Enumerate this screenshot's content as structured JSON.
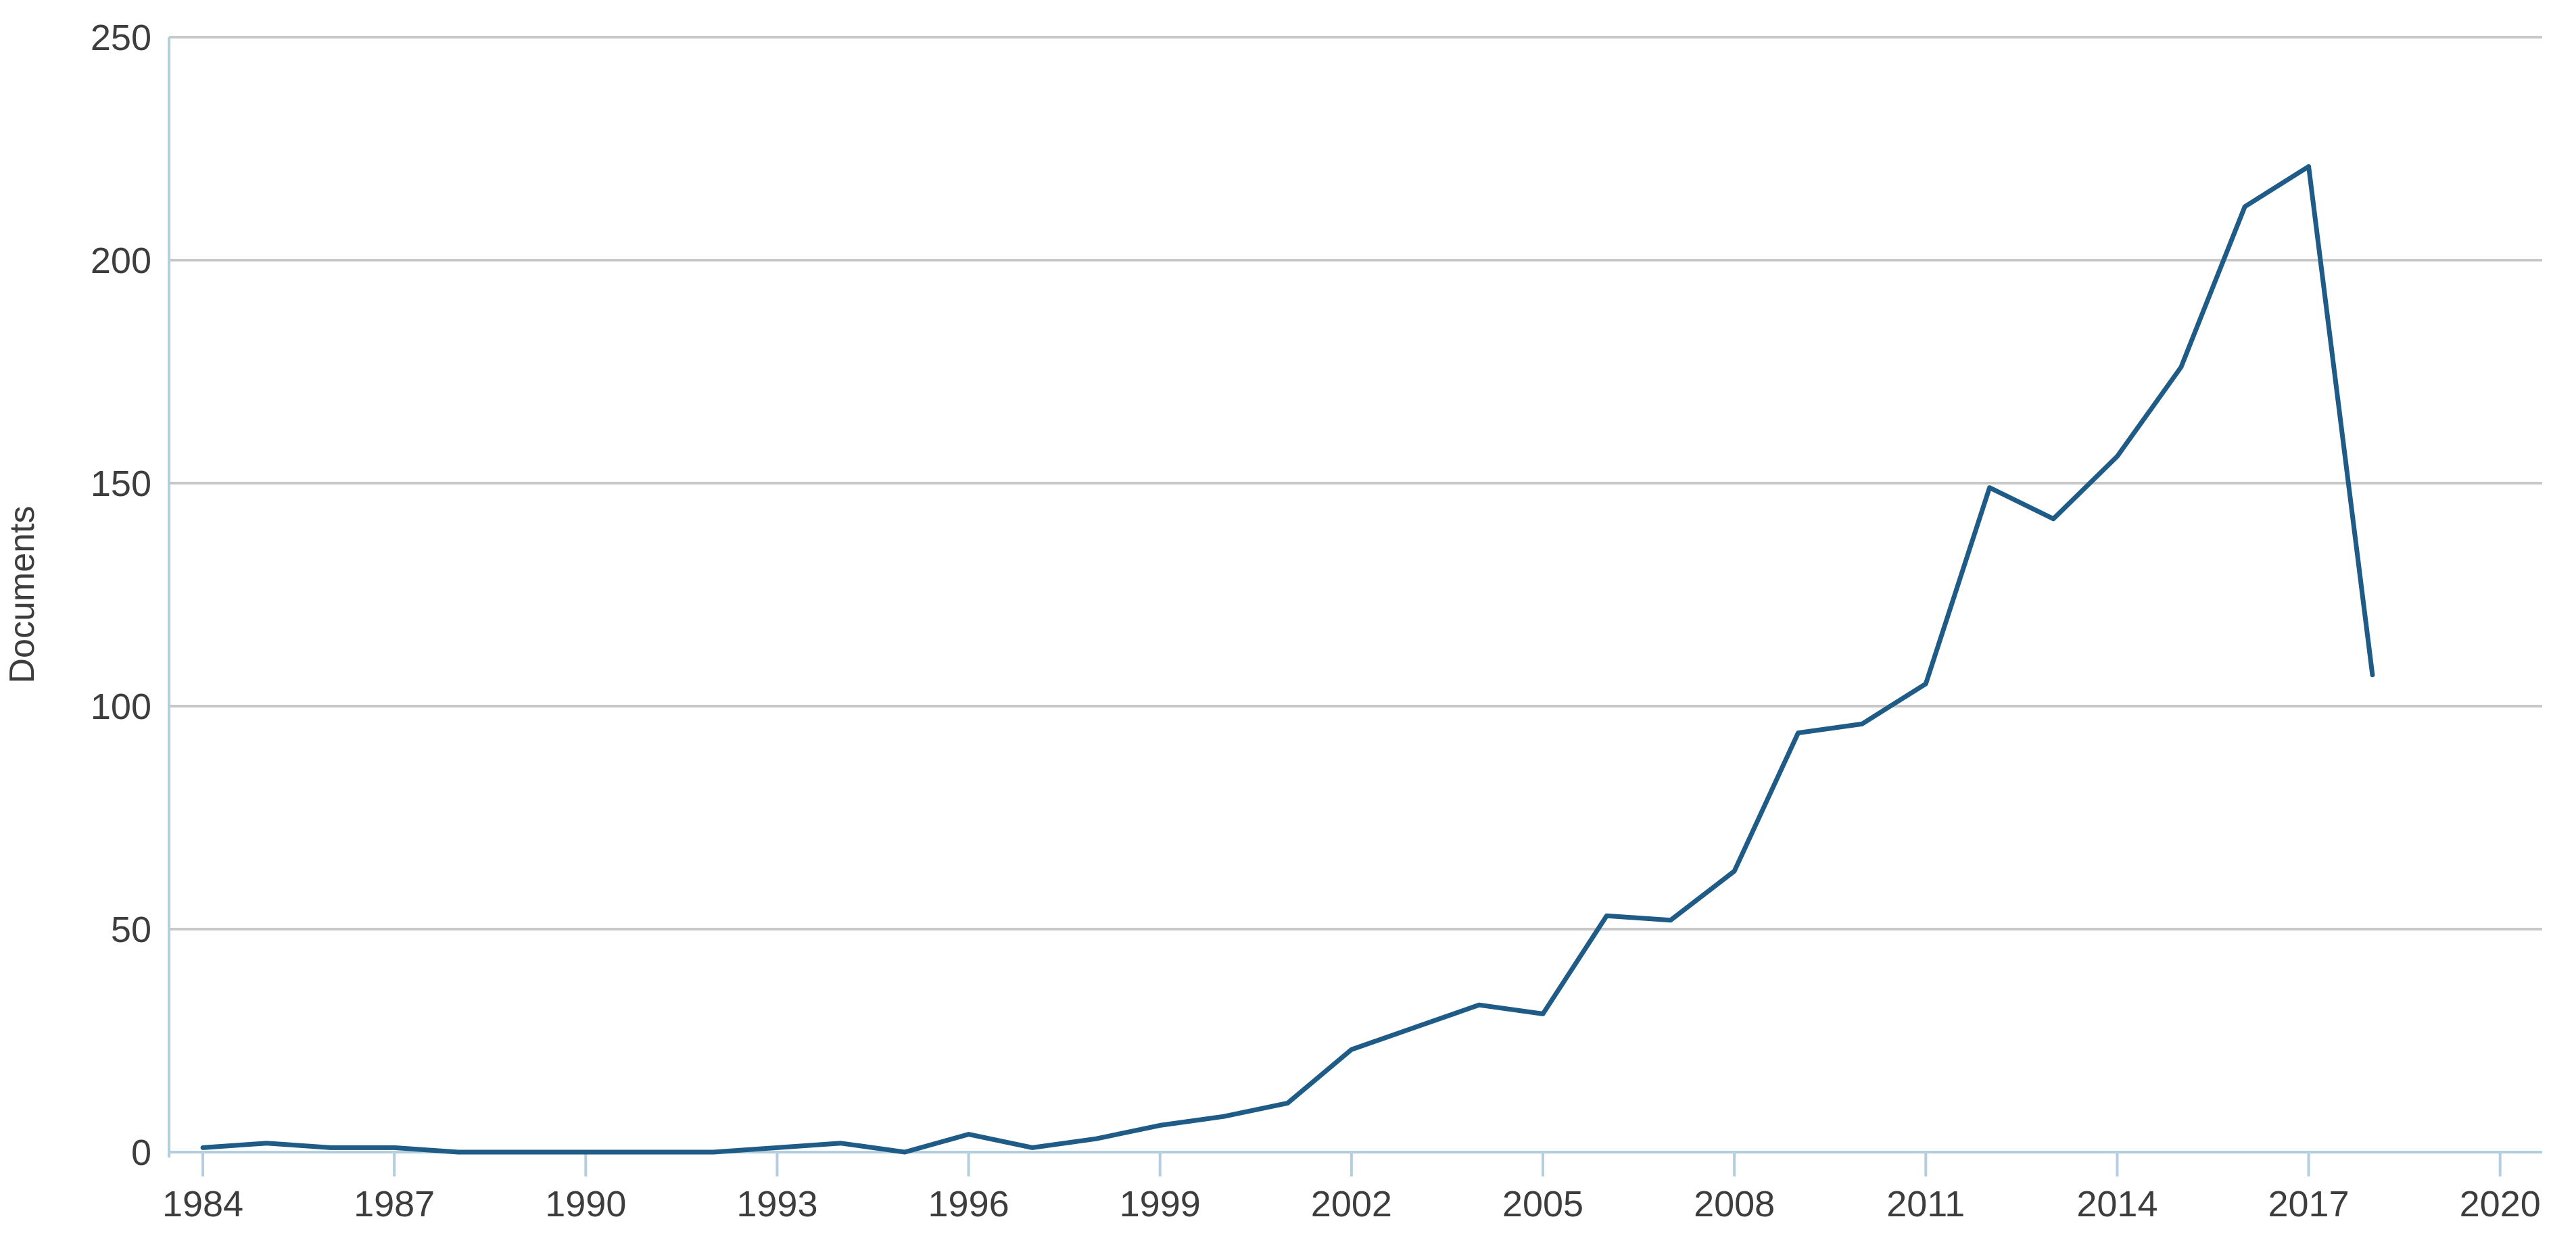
{
  "page": {
    "background_color": "#ffffff"
  },
  "chart_data": {
    "type": "line",
    "title": "",
    "xlabel": "",
    "ylabel": "Documents",
    "x": [
      1984,
      1985,
      1986,
      1987,
      1988,
      1989,
      1990,
      1991,
      1992,
      1993,
      1994,
      1995,
      1996,
      1997,
      1998,
      1999,
      2000,
      2001,
      2002,
      2003,
      2004,
      2005,
      2006,
      2007,
      2008,
      2009,
      2010,
      2011,
      2012,
      2013,
      2014,
      2015,
      2016,
      2017,
      2018
    ],
    "series": [
      {
        "name": "Documents",
        "values": [
          1,
          2,
          1,
          1,
          0,
          0,
          0,
          0,
          0,
          1,
          2,
          0,
          4,
          1,
          3,
          6,
          8,
          11,
          23,
          28,
          33,
          31,
          53,
          52,
          63,
          94,
          96,
          105,
          149,
          142,
          156,
          176,
          212,
          221,
          107
        ]
      }
    ],
    "x_ticks": [
      1984,
      1987,
      1990,
      1993,
      1996,
      1999,
      2002,
      2005,
      2008,
      2011,
      2014,
      2017,
      2020
    ],
    "y_ticks": [
      0,
      50,
      100,
      150,
      200,
      250
    ],
    "xlim": [
      1983.47,
      2020.66
    ],
    "ylim": [
      0,
      250
    ],
    "grid": "horizontal-only",
    "legend_position": "none",
    "colors": {
      "line": "#1e5c87",
      "axis": "#b4cddf",
      "grid": "#c8c8c8",
      "text": "#3d3d3d"
    }
  }
}
